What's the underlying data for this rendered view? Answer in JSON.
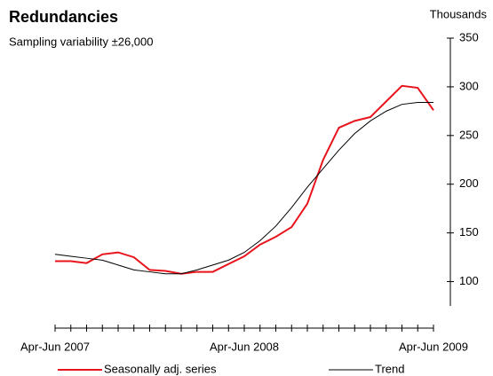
{
  "chart_data": {
    "type": "line",
    "title": "Redundancies",
    "subtitle": "Sampling variability ±26,000",
    "y_axis_label": "Thousands",
    "categories": [
      "Apr-Jun 2007",
      null,
      null,
      null,
      null,
      null,
      null,
      null,
      null,
      null,
      null,
      null,
      "Apr-Jun 2008",
      null,
      null,
      null,
      null,
      null,
      null,
      null,
      null,
      null,
      null,
      null,
      "Apr-Jun 2009"
    ],
    "series": [
      {
        "name": "Seasonally adj. series",
        "color": "#e8141b",
        "values": [
          121,
          121,
          119,
          128,
          130,
          125,
          112,
          111,
          108,
          110,
          110,
          118,
          126,
          138,
          146,
          156,
          180,
          225,
          258,
          265,
          269,
          285,
          301,
          299,
          276
        ]
      },
      {
        "name": "Trend",
        "color": "#000000",
        "values": [
          128,
          126,
          124,
          122,
          117,
          112,
          110,
          108,
          108,
          112,
          117,
          122,
          130,
          142,
          157,
          176,
          197,
          216,
          235,
          252,
          265,
          275,
          282,
          284,
          284
        ]
      }
    ],
    "ylim": [
      75,
      350
    ],
    "yticks": [
      100,
      150,
      200,
      250,
      300,
      350
    ],
    "y_axis_side": "right",
    "legend": "bottom"
  }
}
